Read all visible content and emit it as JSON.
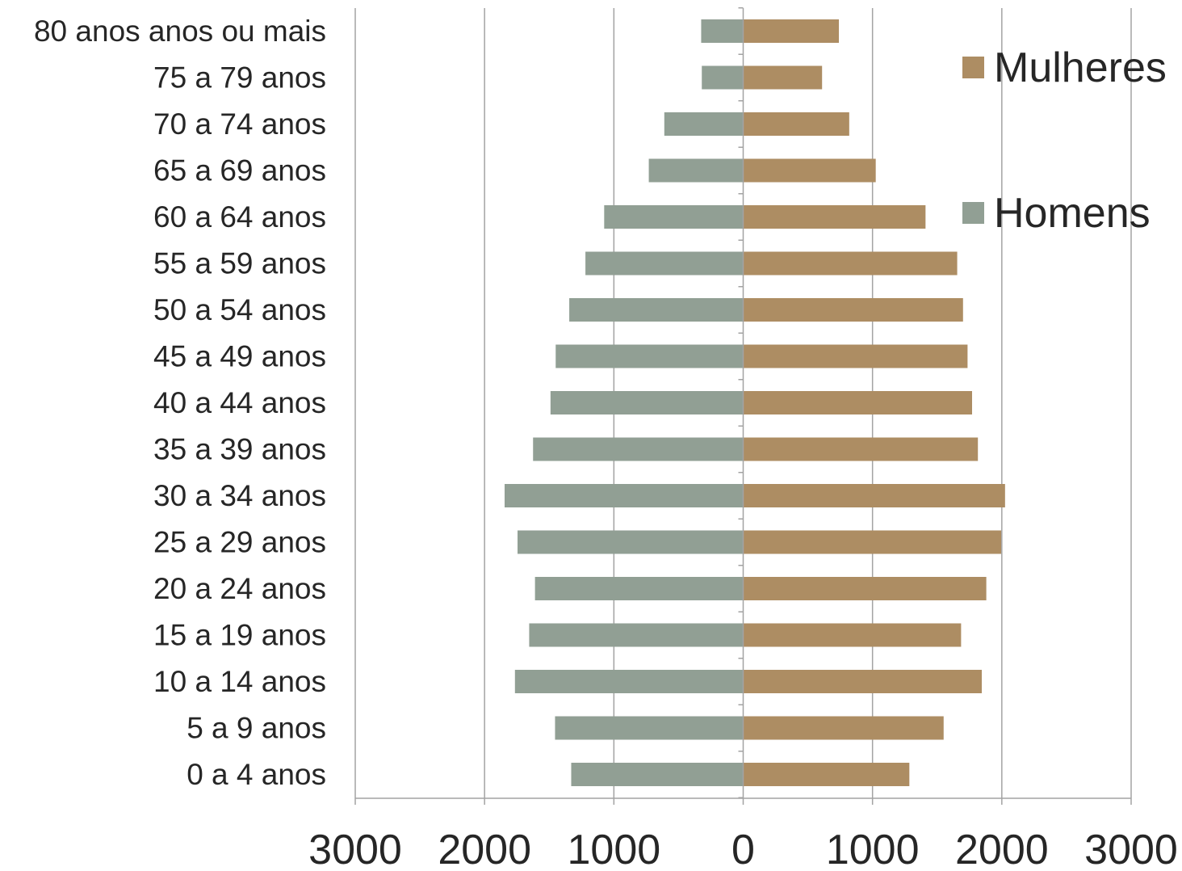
{
  "chart_data": {
    "type": "bar",
    "orientation": "horizontal",
    "layout": "population-pyramid",
    "categories": [
      "80 anos anos ou mais",
      "75 a 79 anos",
      "70 a 74 anos",
      "65 a 69 anos",
      "60 a 64 anos",
      "55 a 59 anos",
      "50 a 54 anos",
      "45 a 49 anos",
      "40 a 44 anos",
      "35 a 39 anos",
      "30 a 34 anos",
      "25 a 29 anos",
      "20 a 24 anos",
      "15 a 19 anos",
      "10 a 14 anos",
      "5 a 9 anos",
      "0 a 4 anos"
    ],
    "series": [
      {
        "name": "Mulheres",
        "color": "#ad8d63",
        "side": "right",
        "values": [
          740,
          610,
          820,
          1025,
          1410,
          1655,
          1700,
          1735,
          1770,
          1815,
          2025,
          1995,
          1880,
          1685,
          1845,
          1550,
          1285
        ]
      },
      {
        "name": "Homens",
        "color": "#919f94",
        "side": "left",
        "values": [
          325,
          320,
          610,
          730,
          1075,
          1220,
          1345,
          1450,
          1490,
          1625,
          1845,
          1745,
          1610,
          1655,
          1765,
          1455,
          1330
        ]
      }
    ],
    "xlim": [
      -3000,
      3000
    ],
    "x_ticks": [
      "3000",
      "2000",
      "1000",
      "0",
      "1000",
      "2000",
      "3000"
    ],
    "grid": true,
    "legend_position": "top-right",
    "title": "",
    "xlabel": "",
    "ylabel": ""
  }
}
